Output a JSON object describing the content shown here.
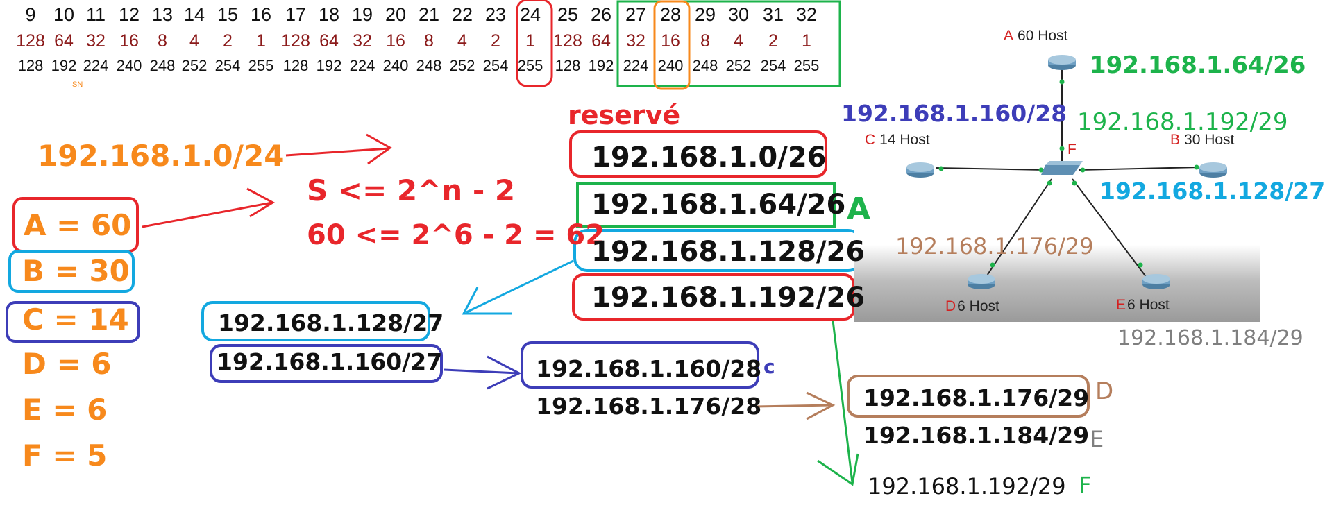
{
  "table": {
    "positions": [
      "9",
      "10",
      "11",
      "12",
      "13",
      "14",
      "15",
      "16",
      "17",
      "18",
      "19",
      "20",
      "21",
      "22",
      "23",
      "24",
      "25",
      "26",
      "27",
      "28",
      "29",
      "30",
      "31",
      "32"
    ],
    "bit_values": [
      "128",
      "64",
      "32",
      "16",
      "8",
      "4",
      "2",
      "1",
      "128",
      "64",
      "32",
      "16",
      "8",
      "4",
      "2",
      "1",
      "128",
      "64",
      "32",
      "16",
      "8",
      "4",
      "2",
      "1"
    ],
    "masks": [
      "128",
      "192",
      "224",
      "240",
      "248",
      "252",
      "254",
      "255",
      "128",
      "192",
      "224",
      "240",
      "248",
      "252",
      "254",
      "255",
      "128",
      "192",
      "224",
      "240",
      "248",
      "252",
      "254",
      "255"
    ],
    "small_label": "SN"
  },
  "left": {
    "network": "192.168.1.0/24",
    "hosts": [
      {
        "label": "A = 60"
      },
      {
        "label": "B = 30"
      },
      {
        "label": "C = 14"
      },
      {
        "label": "D = 6"
      },
      {
        "label": "E = 6"
      },
      {
        "label": "F = 5"
      }
    ]
  },
  "formula": {
    "line1": "S <= 2^n - 2",
    "line2": "60 <= 2^6 - 2 = 62"
  },
  "reserved": {
    "title": "reservé",
    "subnets": [
      "192.168.1.0/26",
      "192.168.1.64/26",
      "192.168.1.128/26",
      "192.168.1.192/26"
    ],
    "a_label": "A"
  },
  "split27": [
    "192.168.1.128/27",
    "192.168.1.160/27"
  ],
  "split28": {
    "items": [
      "192.168.1.160/28",
      "192.168.1.176/28"
    ],
    "c_label": "c"
  },
  "split29": {
    "items": [
      {
        "net": "192.168.1.176/29",
        "tag": "D"
      },
      {
        "net": "192.168.1.184/29",
        "tag": "E"
      },
      {
        "net": "192.168.1.192/29",
        "tag": "F"
      }
    ]
  },
  "topology": {
    "routers": {
      "A": {
        "letter": "A",
        "hosts": "60 Host"
      },
      "B": {
        "letter": "B",
        "hosts": "30 Host"
      },
      "C": {
        "letter": "C",
        "hosts": "14 Host"
      },
      "D": {
        "letter": "D",
        "hosts": "6 Host"
      },
      "E": {
        "letter": "E",
        "hosts": "6 Host"
      },
      "F": {
        "letter": "F"
      }
    },
    "labels": {
      "a_net": "192.168.1.64/26",
      "c_net": "192.168.1.160/28",
      "f_net": "192.168.1.192/29",
      "b_net": "192.168.1.128/27",
      "d_net": "192.168.1.176/29",
      "e_net": "192.168.1.184/29"
    }
  },
  "colors": {
    "red": "#e8262b",
    "orange": "#f7891c",
    "green": "#1db34b",
    "cyan": "#13a8e0",
    "navy": "#3d3db8",
    "brown": "#b57e5c",
    "gray": "#7f7f7f"
  }
}
